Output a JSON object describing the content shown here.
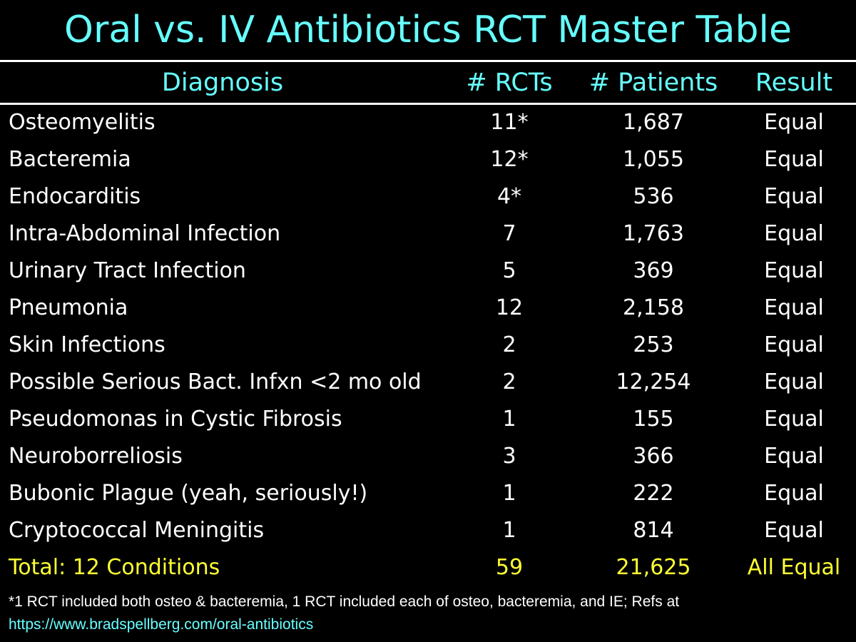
{
  "title": "Oral vs. IV Antibiotics RCT Master Table",
  "header": {
    "diagnosis": "Diagnosis",
    "rcts": "# RCTs",
    "patients": "# Patients",
    "result": "Result"
  },
  "rows": [
    {
      "diagnosis": "Osteomyelitis",
      "rcts": "11*",
      "patients": "1,687",
      "result": "Equal"
    },
    {
      "diagnosis": "Bacteremia",
      "rcts": "12*",
      "patients": "1,055",
      "result": "Equal"
    },
    {
      "diagnosis": "Endocarditis",
      "rcts": "4*",
      "patients": "536",
      "result": "Equal"
    },
    {
      "diagnosis": "Intra-Abdominal Infection",
      "rcts": "7",
      "patients": "1,763",
      "result": "Equal"
    },
    {
      "diagnosis": "Urinary Tract Infection",
      "rcts": "5",
      "patients": "369",
      "result": "Equal"
    },
    {
      "diagnosis": "Pneumonia",
      "rcts": "12",
      "patients": "2,158",
      "result": "Equal"
    },
    {
      "diagnosis": "Skin Infections",
      "rcts": "2",
      "patients": "253",
      "result": "Equal"
    },
    {
      "diagnosis": "Possible Serious Bact. Infxn <2 mo old",
      "rcts": "2",
      "patients": "12,254",
      "result": "Equal"
    },
    {
      "diagnosis": "Pseudomonas in Cystic Fibrosis",
      "rcts": "1",
      "patients": "155",
      "result": "Equal"
    },
    {
      "diagnosis": "Neuroborreliosis",
      "rcts": "3",
      "patients": "366",
      "result": "Equal"
    },
    {
      "diagnosis": "Bubonic Plague (yeah, seriously!)",
      "rcts": "1",
      "patients": "222",
      "result": "Equal"
    },
    {
      "diagnosis": "Cryptococcal Meningitis",
      "rcts": "1",
      "patients": "814",
      "result": "Equal"
    }
  ],
  "total": {
    "diagnosis": "Total: 12 Conditions",
    "rcts": "59",
    "patients": "21,625",
    "result": "All Equal"
  },
  "footnote": {
    "text": "*1 RCT included both osteo & bacteremia, 1 RCT included each of osteo, bacteremia, and IE; Refs at",
    "link": "https://www.bradspellberg.com/oral-antibiotics"
  },
  "colors": {
    "background": "#000000",
    "title": "#66ffff",
    "body_text": "#ffffff",
    "total_text": "#ffff33"
  }
}
